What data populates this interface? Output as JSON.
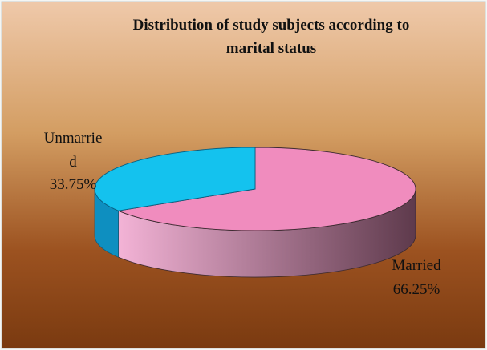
{
  "chart_data": {
    "type": "pie",
    "title_lines": [
      "Distribution of study subjects according to",
      "marital status"
    ],
    "slices": [
      {
        "label": "Married",
        "value": 66.25,
        "value_label": "66.25%",
        "color": "#f08cbe",
        "side_light": "#f3b3d6",
        "side_dark": "#5e3a4c"
      },
      {
        "label": "Unmarried",
        "label_lines": [
          "Unmarrie",
          "d"
        ],
        "value": 33.75,
        "value_label": "33.75%",
        "color": "#14c2ee",
        "side_light": "#12b8e6",
        "side_dark": "#0e8fc0"
      }
    ],
    "style": "3d-pie",
    "legend": "none",
    "background_gradient": [
      "#efc9aa",
      "#d39d62",
      "#9c5220",
      "#7a3a10"
    ]
  }
}
